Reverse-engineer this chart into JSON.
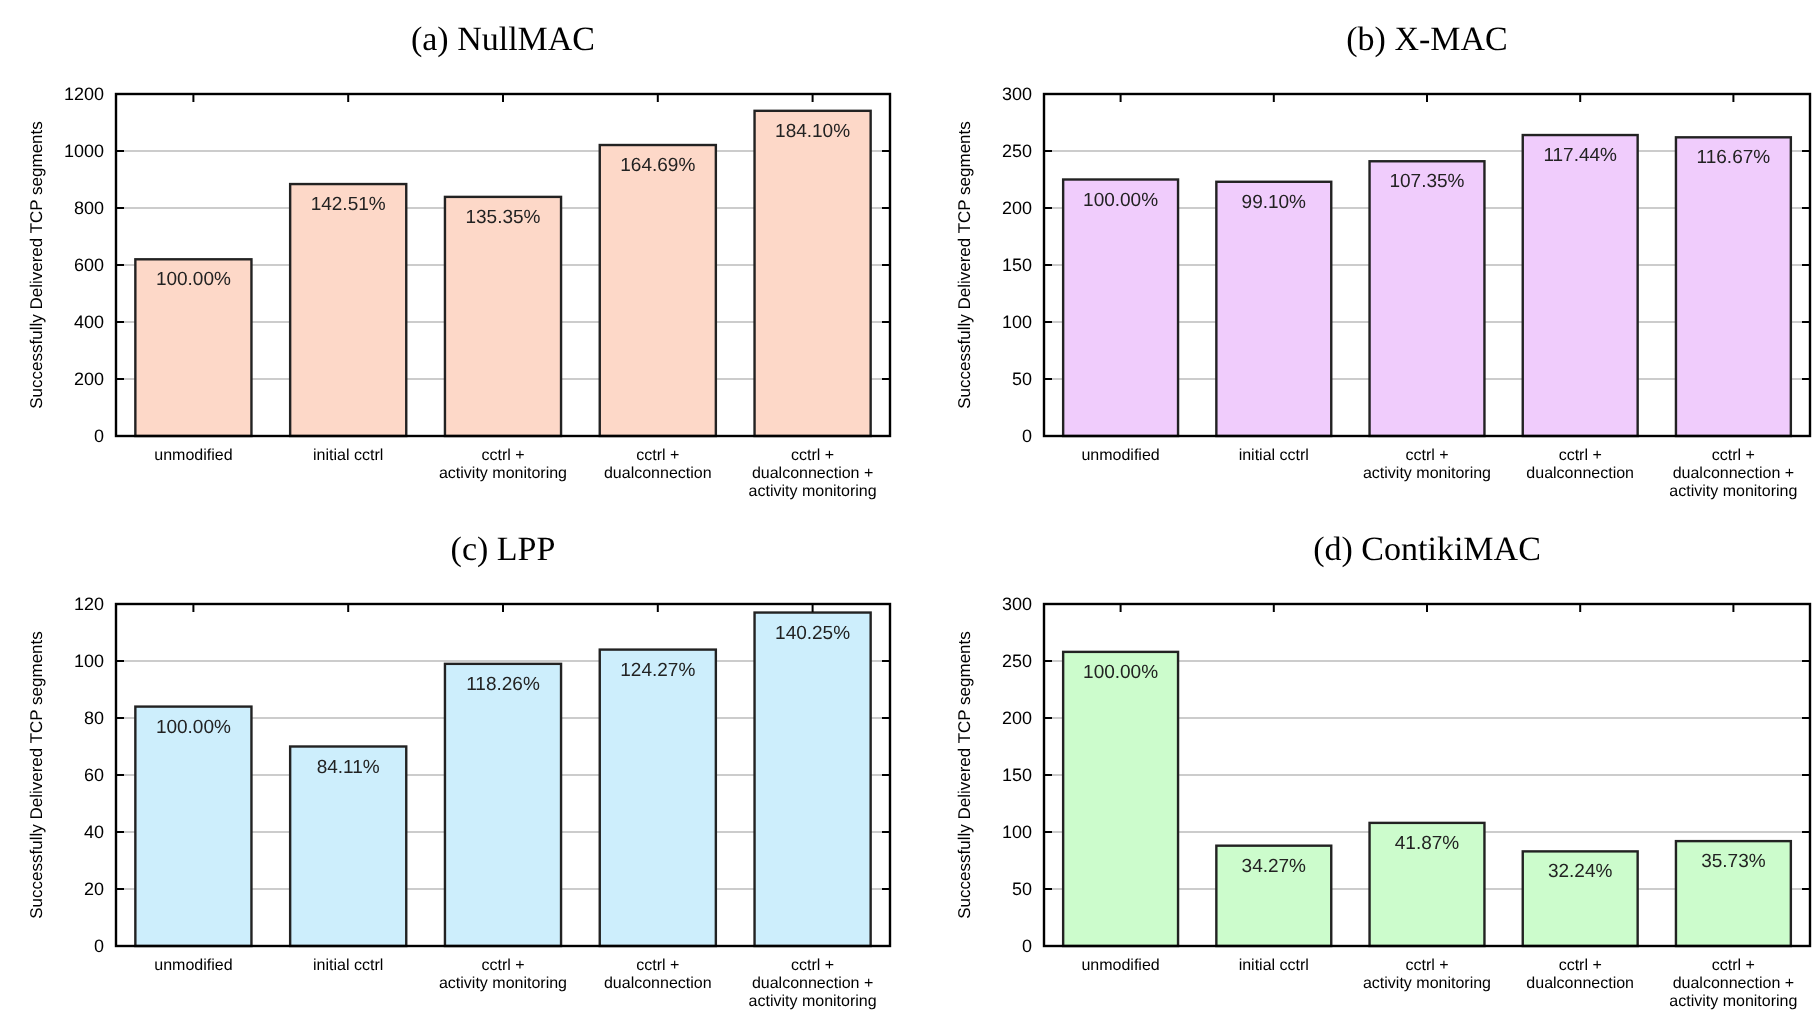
{
  "chart_data": [
    {
      "type": "bar",
      "title": "(a) NullMAC",
      "ylabel": "Successfully Delivered TCP segments",
      "categories": [
        "unmodified",
        "initial cctrl",
        "cctrl +\nactivity monitoring",
        "cctrl +\ndualconnection",
        "cctrl +\ndualconnection +\nactivity monitoring"
      ],
      "values": [
        620,
        884,
        839,
        1021,
        1141
      ],
      "annotations": [
        {
          "text": "100.00%",
          "x": "unmodified",
          "y": 620
        },
        {
          "text": "142.51%",
          "x": "initial cctrl",
          "y": 884
        },
        {
          "text": "135.35%",
          "x": "cctrl +\nactivity monitoring",
          "y": 839
        },
        {
          "text": "164.69%",
          "x": "cctrl +\ndualconnection",
          "y": 1021
        },
        {
          "text": "184.10%",
          "x": "cctrl +\ndualconnection +\nactivity monitoring",
          "y": 1141
        }
      ],
      "color": "#fdd8c8",
      "ylim": [
        0,
        1200
      ],
      "yticks": [
        0,
        200,
        400,
        600,
        800,
        1000,
        1200
      ],
      "grid": "y"
    },
    {
      "type": "bar",
      "title": "(b) X-MAC",
      "ylabel": "Successfully Delivered TCP segments",
      "categories": [
        "unmodified",
        "initial cctrl",
        "cctrl +\nactivity monitoring",
        "cctrl +\ndualconnection",
        "cctrl +\ndualconnection +\nactivity monitoring"
      ],
      "values": [
        225,
        223,
        241,
        264,
        262
      ],
      "annotations": [
        {
          "text": "100.00%",
          "x": "unmodified",
          "y": 225
        },
        {
          "text": "99.10%",
          "x": "initial cctrl",
          "y": 223
        },
        {
          "text": "107.35%",
          "x": "cctrl +\nactivity monitoring",
          "y": 241
        },
        {
          "text": "117.44%",
          "x": "cctrl +\ndualconnection",
          "y": 264
        },
        {
          "text": "116.67%",
          "x": "cctrl +\ndualconnection +\nactivity monitoring",
          "y": 262
        }
      ],
      "color": "#f0ccfc",
      "ylim": [
        0,
        300
      ],
      "yticks": [
        0,
        50,
        100,
        150,
        200,
        250,
        300
      ],
      "grid": "y"
    },
    {
      "type": "bar",
      "title": "(c) LPP",
      "ylabel": "Successfully Delivered TCP segments",
      "categories": [
        "unmodified",
        "initial cctrl",
        "cctrl +\nactivity monitoring",
        "cctrl +\ndualconnection",
        "cctrl +\ndualconnection +\nactivity monitoring"
      ],
      "values": [
        84,
        70,
        99,
        104,
        117
      ],
      "annotations": [
        {
          "text": "100.00%",
          "x": "unmodified",
          "y": 84
        },
        {
          "text": "84.11%",
          "x": "initial cctrl",
          "y": 70
        },
        {
          "text": "118.26%",
          "x": "cctrl +\nactivity monitoring",
          "y": 99
        },
        {
          "text": "124.27%",
          "x": "cctrl +\ndualconnection",
          "y": 104
        },
        {
          "text": "140.25%",
          "x": "cctrl +\ndualconnection +\nactivity monitoring",
          "y": 117
        }
      ],
      "color": "#cdeefc",
      "ylim": [
        0,
        120
      ],
      "yticks": [
        0,
        20,
        40,
        60,
        80,
        100,
        120
      ],
      "grid": "y"
    },
    {
      "type": "bar",
      "title": "(d) ContikiMAC",
      "ylabel": "Successfully Delivered TCP segments",
      "categories": [
        "unmodified",
        "initial cctrl",
        "cctrl +\nactivity monitoring",
        "cctrl +\ndualconnection",
        "cctrl +\ndualconnection +\nactivity monitoring"
      ],
      "values": [
        258,
        88,
        108,
        83,
        92
      ],
      "annotations": [
        {
          "text": "100.00%",
          "x": "unmodified",
          "y": 258
        },
        {
          "text": "34.27%",
          "x": "initial cctrl",
          "y": 88
        },
        {
          "text": "41.87%",
          "x": "cctrl +\nactivity monitoring",
          "y": 108
        },
        {
          "text": "32.24%",
          "x": "cctrl +\ndualconnection",
          "y": 83
        },
        {
          "text": "35.73%",
          "x": "cctrl +\ndualconnection +\nactivity monitoring",
          "y": 92
        }
      ],
      "color": "#ccfccc",
      "ylim": [
        0,
        300
      ],
      "yticks": [
        0,
        50,
        100,
        150,
        200,
        250,
        300
      ],
      "grid": "y"
    }
  ]
}
